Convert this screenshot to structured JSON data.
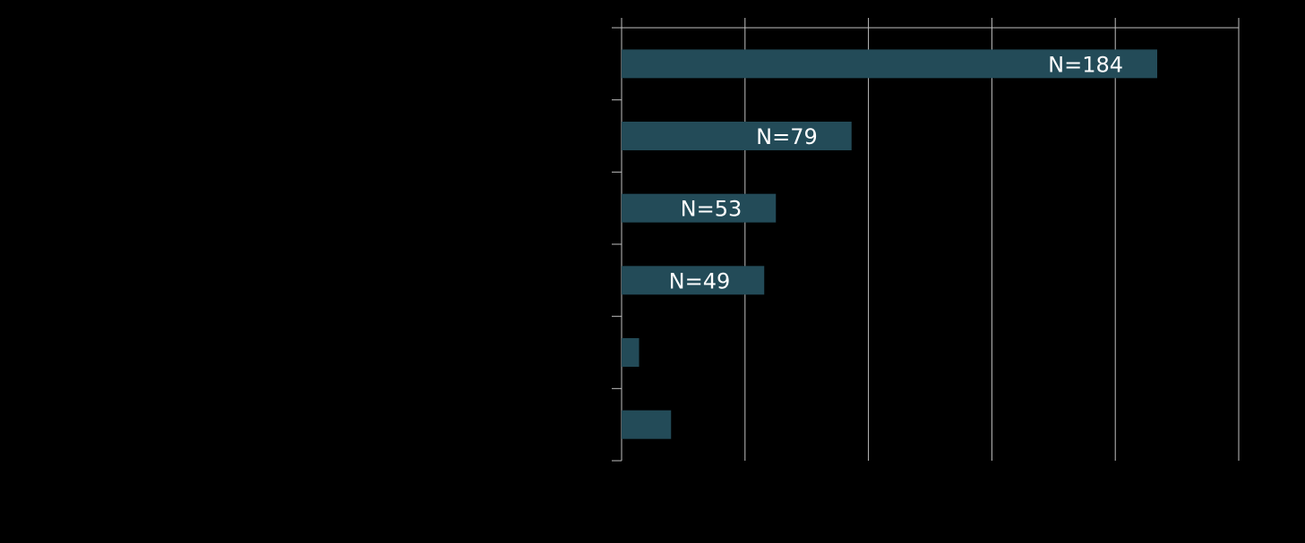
{
  "chart_data": {
    "type": "bar",
    "orientation": "horizontal",
    "series": [
      {
        "values": [
          184,
          79,
          53,
          49,
          6,
          17
        ],
        "labels": [
          "N=184",
          "N=79",
          "N=53",
          "N=49",
          "",
          ""
        ]
      }
    ],
    "xlim": [
      0,
      212
    ],
    "x_gridlines": 5,
    "grid": true,
    "legend": "none",
    "bar_color": "#234b58",
    "axis_color": "#bfbfbf",
    "label_color": "#ffffff",
    "background": "#000000"
  }
}
